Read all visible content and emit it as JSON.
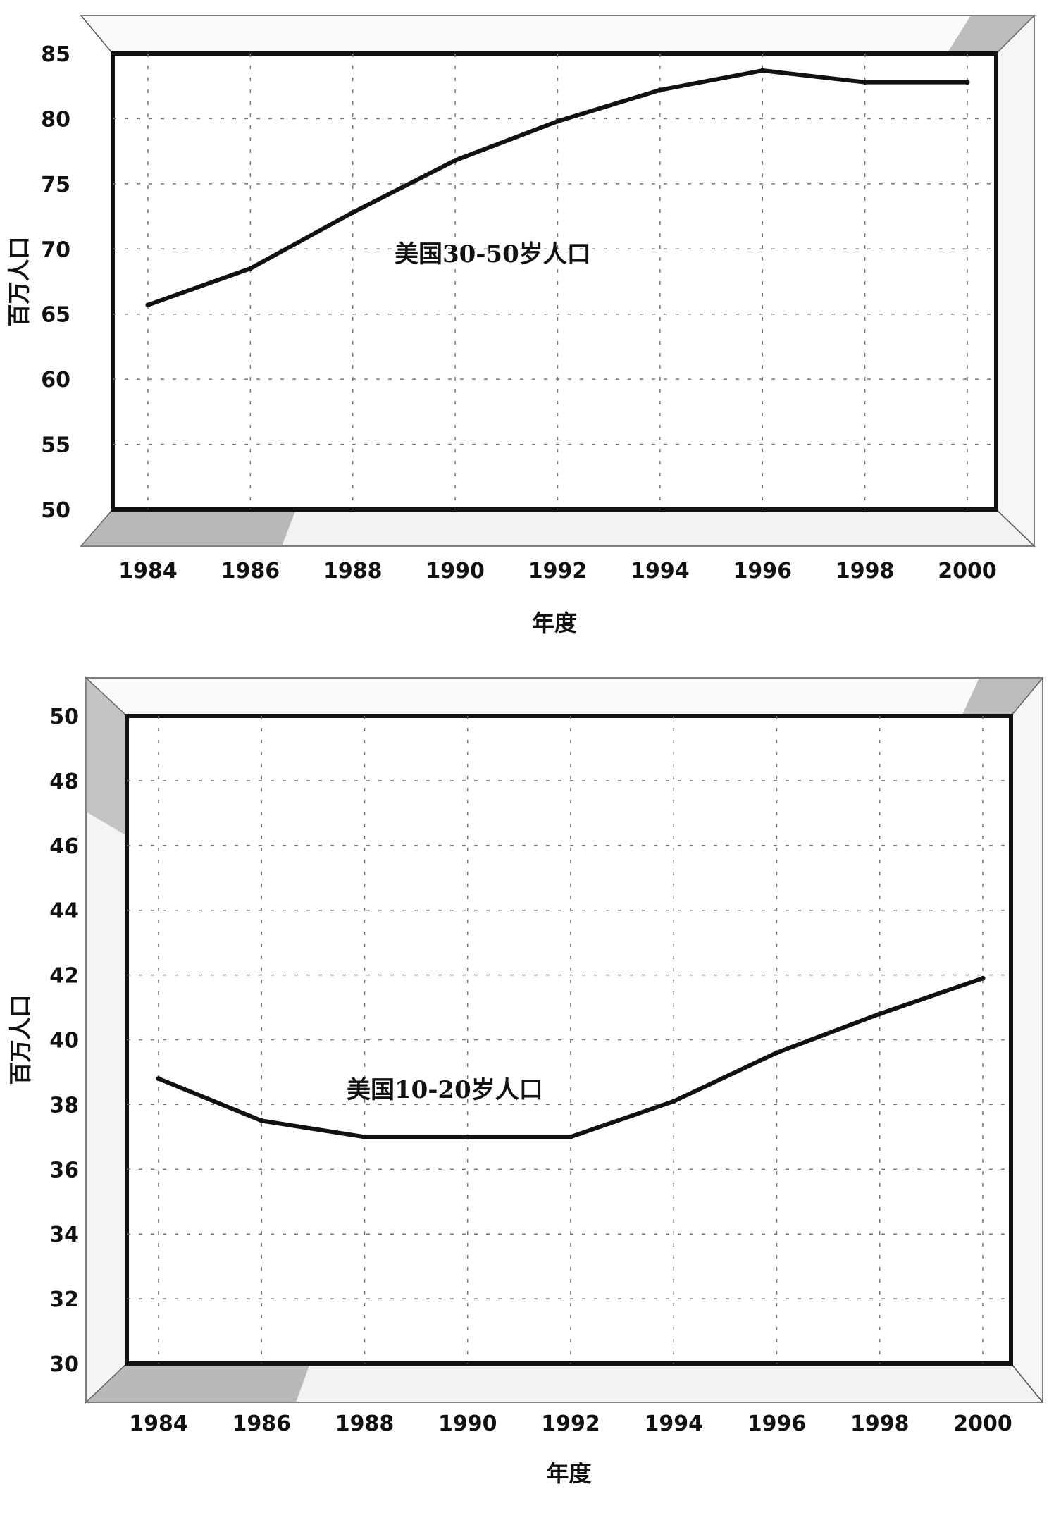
{
  "chart_data": [
    {
      "type": "line",
      "x": [
        1984,
        1986,
        1988,
        1990,
        1992,
        1994,
        1996,
        1998,
        2000
      ],
      "series": [
        {
          "name": "美国30-50岁人口",
          "values": [
            65.7,
            68.5,
            72.8,
            76.8,
            79.8,
            82.2,
            83.7,
            82.8,
            82.8
          ]
        }
      ],
      "annotation": "美国30-50岁人口",
      "xlabel": "年度",
      "ylabel": "百万人口",
      "ylim": [
        50,
        85
      ],
      "yticks": [
        50,
        55,
        60,
        65,
        70,
        75,
        80,
        85
      ],
      "xticks": [
        "1984",
        "1986",
        "1988",
        "1990",
        "1992",
        "1994",
        "1996",
        "1998",
        "2000"
      ],
      "grid": true,
      "legend": "none",
      "line_color": "#111111"
    },
    {
      "type": "line",
      "x": [
        1984,
        1986,
        1988,
        1990,
        1992,
        1994,
        1996,
        1998,
        2000
      ],
      "series": [
        {
          "name": "美国10-20岁人口",
          "values": [
            38.8,
            37.5,
            37.0,
            37.0,
            37.0,
            38.1,
            39.6,
            40.8,
            41.9
          ]
        }
      ],
      "annotation": "美国10-20岁人口",
      "xlabel": "年度",
      "ylabel": "百万人口",
      "ylim": [
        30,
        50
      ],
      "yticks": [
        30,
        32,
        34,
        36,
        38,
        40,
        42,
        44,
        46,
        48,
        50
      ],
      "xticks": [
        "1984",
        "1986",
        "1988",
        "1990",
        "1992",
        "1994",
        "1996",
        "1998",
        "2000"
      ],
      "grid": true,
      "legend": "none",
      "line_color": "#111111"
    }
  ]
}
